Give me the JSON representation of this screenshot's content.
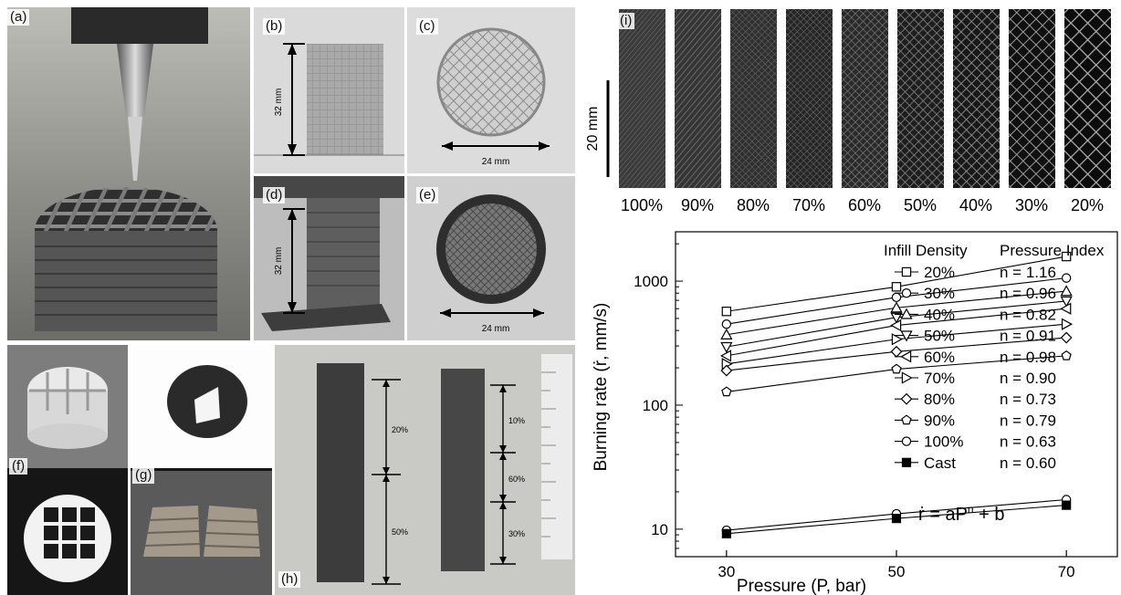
{
  "panels": {
    "a": {
      "label": "(a)"
    },
    "b": {
      "label": "(b)",
      "dim": "32 mm"
    },
    "c": {
      "label": "(c)",
      "dim": "24 mm"
    },
    "d": {
      "label": "(d)",
      "dim": "32 mm"
    },
    "e": {
      "label": "(e)",
      "dim": "24 mm"
    },
    "f": {
      "label": "(f)"
    },
    "g": {
      "label": "(g)"
    },
    "h": {
      "label": "(h)",
      "left_segments": [
        "20%",
        "50%"
      ],
      "right_segments": [
        "10%",
        "60%",
        "30%"
      ]
    },
    "i": {
      "label": "(i)",
      "scale": "20 mm",
      "densities": [
        "100%",
        "90%",
        "80%",
        "70%",
        "60%",
        "50%",
        "40%",
        "30%",
        "20%"
      ]
    }
  },
  "chart_data": {
    "type": "line",
    "xlabel": "Pressure (P, bar)",
    "ylabel": "Burning rate (ṙ, mm/s)",
    "yscale": "log",
    "ylim": [
      6,
      2500
    ],
    "xlim": [
      24,
      76
    ],
    "x": [
      30,
      50,
      70
    ],
    "xticks": [
      "30",
      "50",
      "70"
    ],
    "yticks": [
      {
        "value": 10,
        "label": "10"
      },
      {
        "value": 100,
        "label": "100"
      },
      {
        "value": 1000,
        "label": "1000"
      }
    ],
    "legend_headers": [
      "Infill Density",
      "Pressure Index"
    ],
    "series": [
      {
        "name": "20%",
        "marker": "square",
        "index": "n = 1.16",
        "values": [
          570,
          900,
          1580
        ]
      },
      {
        "name": "30%",
        "marker": "circle",
        "index": "n = 0.96",
        "values": [
          450,
          740,
          1060
        ]
      },
      {
        "name": "40%",
        "marker": "triangle-up",
        "index": "n = 0.82",
        "values": [
          370,
          610,
          830
        ]
      },
      {
        "name": "50%",
        "marker": "triangle-down",
        "index": "n = 0.91",
        "values": [
          295,
          510,
          690
        ]
      },
      {
        "name": "60%",
        "marker": "triangle-left",
        "index": "n = 0.98",
        "values": [
          250,
          440,
          600
        ]
      },
      {
        "name": "70%",
        "marker": "triangle-right",
        "index": "n = 0.90",
        "values": [
          215,
          340,
          450
        ]
      },
      {
        "name": "80%",
        "marker": "diamond",
        "index": "n = 0.73",
        "values": [
          190,
          270,
          350
        ]
      },
      {
        "name": "90%",
        "marker": "pentagon",
        "index": "n = 0.79",
        "values": [
          128,
          195,
          250
        ]
      },
      {
        "name": "100%",
        "marker": "circle",
        "index": "n = 0.63",
        "values": [
          9.8,
          13.3,
          17.3
        ]
      },
      {
        "name": "Cast",
        "marker": "filled-square",
        "index": "n = 0.60",
        "values": [
          9.2,
          12.2,
          15.6
        ]
      }
    ],
    "equation_lhs": "ṙ = aP",
    "equation_exp": "n",
    "equation_rhs": " + b"
  }
}
